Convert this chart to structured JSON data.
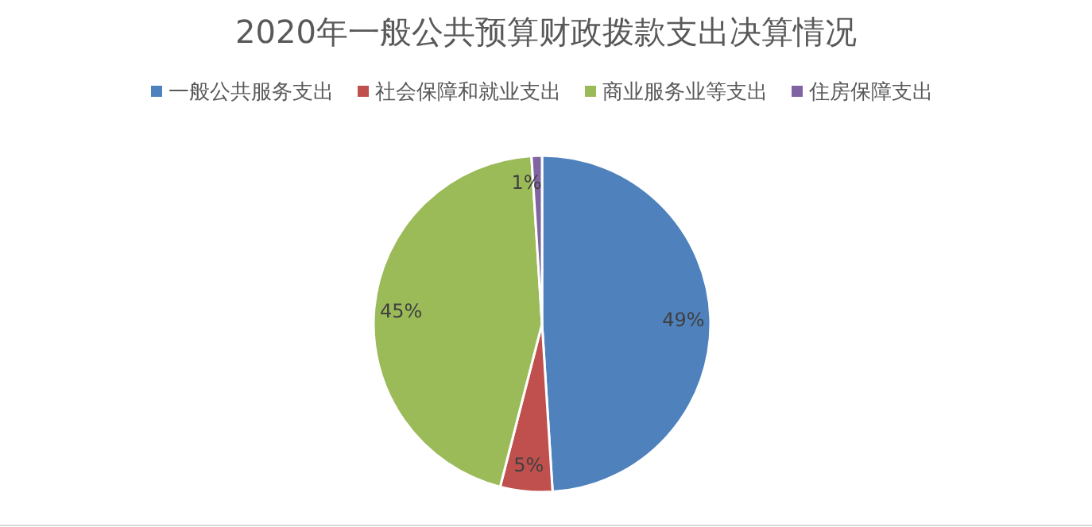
{
  "chart_data": {
    "type": "pie",
    "title": "2020年一般公共预算财政拨款支出决算情况",
    "categories": [
      "一般公共服务支出",
      "社会保障和就业支出",
      "商业服务业等支出",
      "住房保障支出"
    ],
    "values": [
      49,
      5,
      45,
      1
    ],
    "colors": [
      "#4f81bd",
      "#c0504d",
      "#9bbb59",
      "#8064a2"
    ],
    "value_labels": [
      "49%",
      "5%",
      "45%",
      "1%"
    ],
    "legend": "top"
  }
}
